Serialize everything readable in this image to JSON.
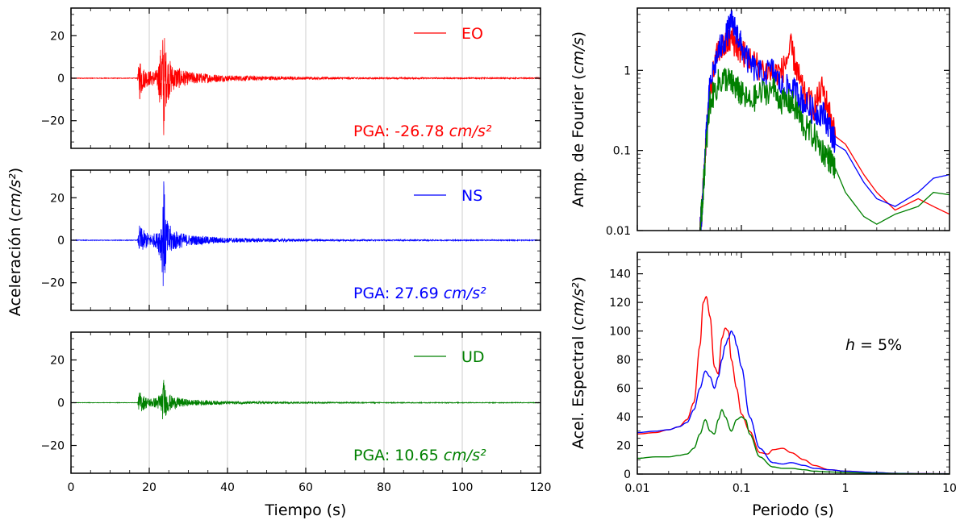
{
  "figure": {
    "acc_ylabel": "Aceleración (cm/s²)",
    "acc_ylabel_prefix": "Aceleración (",
    "acc_ylabel_unit": "cm/s²",
    "acc_ylabel_suffix": ")",
    "time_xlabel": "Tiempo (s)",
    "fourier_ylabel_prefix": "Amp. de Fourier (",
    "fourier_ylabel_unit": "cm/s",
    "fourier_ylabel_suffix": ")",
    "spectral_ylabel_prefix": "Acel. Espectral (",
    "spectral_ylabel_unit": "cm/s²",
    "spectral_ylabel_suffix": ")",
    "period_xlabel": "Periodo (s)",
    "damping_label_var": "h",
    "damping_label_eq": " = 5%"
  },
  "colors": {
    "EO": "#ff0000",
    "NS": "#0000ff",
    "UD": "#008000",
    "grid": "#cccccc"
  },
  "chart_data": [
    {
      "type": "line",
      "panel": "acceleration-EO",
      "legend": "EO",
      "pga_prefix": "PGA: -26.78 ",
      "pga_unit": "cm/s²",
      "color": "#ff0000",
      "xlim": [
        0,
        120
      ],
      "ylim": [
        -33,
        33
      ],
      "xticks": [
        0,
        20,
        40,
        60,
        80,
        100,
        120
      ],
      "yticks": [
        -20,
        0,
        20
      ],
      "ytick_labels": [
        "−20",
        "0",
        "20"
      ],
      "peak": -26.78,
      "envelope": [
        [
          0,
          0.15
        ],
        [
          17,
          0.15
        ],
        [
          17.5,
          11
        ],
        [
          18.5,
          5
        ],
        [
          20,
          3.5
        ],
        [
          22,
          4
        ],
        [
          23.2,
          18
        ],
        [
          23.7,
          24
        ],
        [
          24.4,
          12
        ],
        [
          26,
          6
        ],
        [
          30,
          3
        ],
        [
          40,
          1.4
        ],
        [
          60,
          0.6
        ],
        [
          80,
          0.35
        ],
        [
          120,
          0.25
        ]
      ]
    },
    {
      "type": "line",
      "panel": "acceleration-NS",
      "legend": "NS",
      "pga_prefix": "PGA: 27.69 ",
      "pga_unit": "cm/s²",
      "color": "#0000ff",
      "xlim": [
        0,
        120
      ],
      "ylim": [
        -33,
        33
      ],
      "xticks": [
        0,
        20,
        40,
        60,
        80,
        100,
        120
      ],
      "yticks": [
        -20,
        0,
        20
      ],
      "ytick_labels": [
        "−20",
        "0",
        "20"
      ],
      "peak": 27.69,
      "envelope": [
        [
          0,
          0.15
        ],
        [
          17,
          0.15
        ],
        [
          17.5,
          7
        ],
        [
          18.5,
          5
        ],
        [
          20,
          3
        ],
        [
          22,
          3.5
        ],
        [
          23.2,
          12
        ],
        [
          23.7,
          27.69
        ],
        [
          24.4,
          10
        ],
        [
          26,
          5
        ],
        [
          30,
          2.5
        ],
        [
          40,
          1.2
        ],
        [
          60,
          0.5
        ],
        [
          80,
          0.3
        ],
        [
          120,
          0.2
        ]
      ]
    },
    {
      "type": "line",
      "panel": "acceleration-UD",
      "legend": "UD",
      "pga_prefix": "PGA: 10.65 ",
      "pga_unit": "cm/s²",
      "color": "#008000",
      "xlim": [
        0,
        120
      ],
      "ylim": [
        -33,
        33
      ],
      "xticks": [
        0,
        20,
        40,
        60,
        80,
        100,
        120
      ],
      "yticks": [
        -20,
        0,
        20
      ],
      "ytick_labels": [
        "−20",
        "0",
        "20"
      ],
      "peak": 10.65,
      "envelope": [
        [
          0,
          0.1
        ],
        [
          17,
          0.1
        ],
        [
          17.5,
          5.5
        ],
        [
          18.5,
          3.5
        ],
        [
          20,
          2
        ],
        [
          22,
          2.5
        ],
        [
          23.2,
          6
        ],
        [
          23.7,
          10.65
        ],
        [
          24.4,
          5
        ],
        [
          26,
          3
        ],
        [
          30,
          1.5
        ],
        [
          40,
          0.7
        ],
        [
          60,
          0.3
        ],
        [
          80,
          0.2
        ],
        [
          120,
          0.15
        ]
      ]
    },
    {
      "type": "line",
      "panel": "fourier-amplitude",
      "xscale": "log",
      "yscale": "log",
      "xlim": [
        0.01,
        10
      ],
      "ylim": [
        0.01,
        6
      ],
      "xticks": [
        0.01,
        0.1,
        1,
        10
      ],
      "xtick_labels": [
        "0.01",
        "0.1",
        "1",
        "10"
      ],
      "yticks": [
        0.01,
        0.1,
        1
      ],
      "ytick_labels": [
        "0.01",
        "0.1",
        "1"
      ],
      "series": [
        {
          "name": "EO",
          "color": "#ff0000",
          "x": [
            0.04,
            0.042,
            0.045,
            0.05,
            0.06,
            0.07,
            0.08,
            0.09,
            0.1,
            0.12,
            0.15,
            0.2,
            0.25,
            0.3,
            0.35,
            0.4,
            0.5,
            0.6,
            0.7,
            0.8,
            1,
            1.5,
            2,
            3,
            5,
            7,
            10
          ],
          "y": [
            0.01,
            0.02,
            0.1,
            0.6,
            1.8,
            2.0,
            2.5,
            2.0,
            1.7,
            1.4,
            1.1,
            0.9,
            1.0,
            1.9,
            0.9,
            0.5,
            0.35,
            0.6,
            0.3,
            0.15,
            0.12,
            0.05,
            0.03,
            0.018,
            0.025,
            0.02,
            0.016
          ]
        },
        {
          "name": "NS",
          "color": "#0000ff",
          "x": [
            0.04,
            0.042,
            0.045,
            0.05,
            0.06,
            0.07,
            0.08,
            0.09,
            0.1,
            0.12,
            0.15,
            0.2,
            0.25,
            0.3,
            0.35,
            0.4,
            0.5,
            0.6,
            0.7,
            0.8,
            1,
            1.5,
            2,
            3,
            5,
            7,
            10
          ],
          "y": [
            0.01,
            0.02,
            0.1,
            0.7,
            1.7,
            2.5,
            4.0,
            3.0,
            2.0,
            1.2,
            0.9,
            1.0,
            0.6,
            0.6,
            0.5,
            0.4,
            0.3,
            0.3,
            0.2,
            0.12,
            0.1,
            0.04,
            0.025,
            0.02,
            0.03,
            0.045,
            0.05
          ]
        },
        {
          "name": "UD",
          "color": "#008000",
          "x": [
            0.04,
            0.042,
            0.045,
            0.05,
            0.06,
            0.07,
            0.08,
            0.09,
            0.1,
            0.12,
            0.15,
            0.2,
            0.25,
            0.3,
            0.35,
            0.4,
            0.5,
            0.6,
            0.7,
            0.8,
            1,
            1.5,
            2,
            3,
            5,
            7,
            10
          ],
          "y": [
            0.01,
            0.02,
            0.08,
            0.4,
            0.7,
            0.8,
            0.7,
            0.6,
            0.5,
            0.4,
            0.5,
            0.6,
            0.4,
            0.4,
            0.3,
            0.2,
            0.15,
            0.1,
            0.08,
            0.06,
            0.03,
            0.015,
            0.012,
            0.016,
            0.02,
            0.03,
            0.028
          ]
        }
      ]
    },
    {
      "type": "line",
      "panel": "response-spectrum",
      "xscale": "log",
      "xlim": [
        0.01,
        10
      ],
      "ylim": [
        0,
        155
      ],
      "xticks": [
        0.01,
        0.1,
        1,
        10
      ],
      "xtick_labels": [
        "0.01",
        "0.1",
        "1",
        "10"
      ],
      "yticks": [
        0,
        20,
        40,
        60,
        80,
        100,
        120,
        140
      ],
      "ytick_labels": [
        "0",
        "20",
        "40",
        "60",
        "80",
        "100",
        "120",
        "140"
      ],
      "series": [
        {
          "name": "EO",
          "color": "#ff0000",
          "x": [
            0.01,
            0.015,
            0.02,
            0.025,
            0.03,
            0.035,
            0.04,
            0.043,
            0.046,
            0.05,
            0.055,
            0.06,
            0.065,
            0.07,
            0.075,
            0.08,
            0.09,
            0.1,
            0.12,
            0.15,
            0.18,
            0.2,
            0.25,
            0.3,
            0.4,
            0.5,
            0.7,
            1,
            2,
            3,
            5,
            10
          ],
          "y": [
            28,
            29,
            31,
            33,
            38,
            50,
            90,
            120,
            124,
            110,
            75,
            70,
            95,
            102,
            100,
            80,
            60,
            42,
            30,
            15,
            14,
            17,
            18,
            15,
            10,
            6,
            3,
            2,
            1,
            0.5,
            0.3,
            0.2
          ]
        },
        {
          "name": "NS",
          "color": "#0000ff",
          "x": [
            0.01,
            0.015,
            0.02,
            0.025,
            0.03,
            0.035,
            0.04,
            0.045,
            0.05,
            0.055,
            0.06,
            0.065,
            0.07,
            0.075,
            0.08,
            0.085,
            0.09,
            0.1,
            0.12,
            0.15,
            0.2,
            0.25,
            0.3,
            0.4,
            0.5,
            0.7,
            1,
            2,
            3,
            5,
            10
          ],
          "y": [
            29,
            30,
            31,
            33,
            36,
            45,
            60,
            72,
            68,
            60,
            68,
            80,
            90,
            95,
            100,
            97,
            90,
            75,
            40,
            18,
            8,
            7,
            8,
            6,
            4,
            3,
            2,
            1,
            0.5,
            0.3,
            0.2
          ]
        },
        {
          "name": "UD",
          "color": "#008000",
          "x": [
            0.01,
            0.015,
            0.02,
            0.025,
            0.03,
            0.035,
            0.04,
            0.045,
            0.05,
            0.055,
            0.06,
            0.065,
            0.07,
            0.08,
            0.09,
            0.1,
            0.11,
            0.12,
            0.15,
            0.2,
            0.25,
            0.3,
            0.4,
            0.5,
            0.7,
            1,
            2,
            3,
            5,
            10
          ],
          "y": [
            11,
            12,
            12,
            13,
            14,
            18,
            28,
            38,
            30,
            28,
            38,
            45,
            40,
            30,
            38,
            40,
            38,
            28,
            12,
            5,
            4,
            4,
            3,
            2,
            1.5,
            1,
            0.5,
            0.3,
            0.2,
            0.1
          ]
        }
      ],
      "annotation": "h = 5%"
    }
  ]
}
